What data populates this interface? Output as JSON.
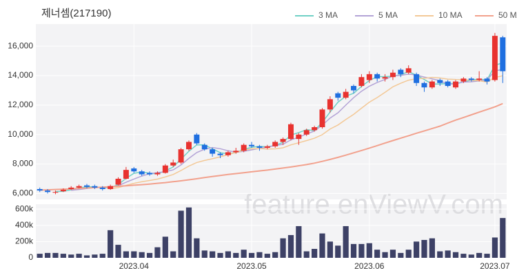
{
  "chart_data": {
    "type": "candlestick",
    "title": "제너셈(217190)",
    "watermark": "feature.enViewV.com",
    "legend": "top-right",
    "grid": true,
    "up_color": "#e8322f",
    "down_color": "#1f6fe0",
    "categories": [
      null,
      null,
      null,
      null,
      null,
      null,
      null,
      null,
      null,
      null,
      null,
      null,
      "2023.04",
      null,
      null,
      null,
      null,
      null,
      null,
      null,
      null,
      null,
      null,
      null,
      null,
      null,
      null,
      "2023.05",
      null,
      null,
      null,
      null,
      null,
      null,
      null,
      null,
      null,
      null,
      null,
      null,
      null,
      null,
      "2023.06",
      null,
      null,
      null,
      null,
      null,
      null,
      null,
      null,
      null,
      null,
      null,
      null,
      null,
      null,
      null,
      "2023.07",
      null
    ],
    "open": [
      6300,
      6200,
      6050,
      6150,
      6300,
      6400,
      6550,
      6500,
      6400,
      6300,
      6600,
      7000,
      7700,
      7500,
      7400,
      7300,
      7400,
      7900,
      8100,
      9000,
      10000,
      9300,
      9000,
      8700,
      8600,
      8800,
      8900,
      9300,
      9200,
      9100,
      9200,
      9500,
      9700,
      9700,
      10000,
      10300,
      10500,
      11700,
      12800,
      12500,
      13300,
      13300,
      13700,
      14100,
      13800,
      13900,
      14400,
      14200,
      14100,
      13500,
      13200,
      13700,
      13600,
      13200,
      13600,
      13800,
      13700,
      13800,
      13700,
      16600
    ],
    "high": [
      6400,
      6300,
      6200,
      6350,
      6500,
      6600,
      6650,
      6600,
      6500,
      6600,
      7100,
      7800,
      7800,
      7600,
      7500,
      7500,
      8000,
      8300,
      9100,
      9600,
      10100,
      9400,
      9100,
      8800,
      8900,
      9100,
      9400,
      9500,
      9300,
      9300,
      9600,
      9800,
      10800,
      10100,
      10400,
      10600,
      11800,
      12600,
      12900,
      13100,
      13400,
      14100,
      14300,
      14200,
      14100,
      14400,
      14500,
      14700,
      14200,
      13600,
      13700,
      13800,
      13700,
      13700,
      13900,
      13900,
      14300,
      13900,
      16900,
      16700
    ],
    "low": [
      6100,
      6000,
      5950,
      6100,
      6250,
      6350,
      6350,
      6300,
      6200,
      6250,
      6550,
      6950,
      7400,
      7200,
      7200,
      7200,
      7350,
      7800,
      8000,
      8900,
      9300,
      8900,
      8500,
      8400,
      8500,
      8700,
      8800,
      9100,
      8900,
      9000,
      9100,
      9300,
      9600,
      9300,
      9900,
      10200,
      10400,
      11500,
      12300,
      12400,
      12800,
      13200,
      13500,
      13600,
      13600,
      13700,
      13900,
      14100,
      13300,
      12900,
      13100,
      13300,
      13200,
      13100,
      13500,
      13600,
      13600,
      13400,
      13600,
      13500
    ],
    "close": [
      6200,
      6100,
      6100,
      6250,
      6400,
      6500,
      6450,
      6400,
      6300,
      6500,
      7000,
      7600,
      7500,
      7300,
      7300,
      7400,
      7900,
      8100,
      9000,
      9500,
      9400,
      9000,
      8700,
      8600,
      8800,
      8900,
      9300,
      9200,
      9100,
      9200,
      9500,
      9700,
      10700,
      10000,
      10300,
      10500,
      11700,
      12400,
      12500,
      12900,
      13000,
      13900,
      14100,
      13800,
      13900,
      14200,
      14100,
      14500,
      13500,
      13200,
      13600,
      13500,
      13300,
      13600,
      13800,
      13700,
      13800,
      13600,
      16700,
      14300
    ],
    "ylim": [
      5600,
      17500
    ],
    "yticks": [
      {
        "value": 6000,
        "label": "6,000"
      },
      {
        "value": 8000,
        "label": "8,000"
      },
      {
        "value": 10000,
        "label": "10,000"
      },
      {
        "value": 12000,
        "label": "12,000"
      },
      {
        "value": 14000,
        "label": "14,000"
      },
      {
        "value": 16000,
        "label": "16,000"
      }
    ],
    "series": [
      {
        "name": "3 MA",
        "color": "#6fd0c5",
        "values": [
          null,
          null,
          6133,
          6150,
          6250,
          6383,
          6450,
          6450,
          6383,
          6400,
          6600,
          7033,
          7367,
          7467,
          7367,
          7333,
          7533,
          7800,
          8333,
          8867,
          9300,
          9300,
          9033,
          8767,
          8700,
          8767,
          9000,
          9133,
          9200,
          9167,
          9267,
          9467,
          9967,
          10133,
          10333,
          10267,
          10833,
          11533,
          12200,
          12600,
          12800,
          13267,
          13667,
          13933,
          13933,
          13967,
          14067,
          14267,
          14033,
          13733,
          13433,
          13433,
          13467,
          13467,
          13567,
          13700,
          13767,
          13700,
          14700,
          14867
        ]
      },
      {
        "name": "5 MA",
        "color": "#b3a3d6",
        "values": [
          null,
          null,
          null,
          null,
          6210,
          6270,
          6340,
          6400,
          6410,
          6430,
          6530,
          6760,
          6980,
          7180,
          7340,
          7420,
          7480,
          7600,
          7940,
          8380,
          8780,
          9000,
          9120,
          9040,
          8900,
          8800,
          8860,
          8960,
          9060,
          9140,
          9260,
          9340,
          9640,
          9820,
          10040,
          10240,
          10640,
          11120,
          11480,
          12000,
          12500,
          12940,
          13280,
          13540,
          13740,
          13980,
          14020,
          14100,
          14040,
          13900,
          13780,
          13660,
          13420,
          13440,
          13560,
          13580,
          13640,
          13700,
          14320,
          14420
        ]
      },
      {
        "name": "10 MA",
        "color": "#f3c896",
        "values": [
          null,
          null,
          null,
          null,
          null,
          null,
          null,
          null,
          null,
          6320,
          6400,
          6550,
          6690,
          6795,
          6885,
          6975,
          7120,
          7290,
          7560,
          7860,
          8100,
          8240,
          8360,
          8490,
          8640,
          8790,
          8930,
          9040,
          9050,
          9020,
          9030,
          9100,
          9300,
          9440,
          9590,
          9750,
          9990,
          10380,
          10650,
          11020,
          11370,
          11790,
          12200,
          12510,
          12870,
          13240,
          13480,
          13690,
          13790,
          13820,
          13880,
          13840,
          13760,
          13740,
          13730,
          13680,
          13650,
          13560,
          13880,
          13990
        ]
      },
      {
        "name": "50 MA",
        "color": "#f2a08c",
        "values": [
          6230,
          6250,
          6270,
          6290,
          6310,
          6340,
          6370,
          6400,
          6430,
          6460,
          6490,
          6520,
          6560,
          6600,
          6640,
          6690,
          6740,
          6800,
          6860,
          6930,
          7000,
          7080,
          7150,
          7220,
          7290,
          7350,
          7410,
          7470,
          7530,
          7590,
          7660,
          7730,
          7800,
          7880,
          7960,
          8060,
          8180,
          8310,
          8450,
          8600,
          8760,
          8920,
          9080,
          9250,
          9420,
          9590,
          9760,
          9920,
          10090,
          10250,
          10410,
          10570,
          10780,
          10980,
          11160,
          11340,
          11520,
          11700,
          11880,
          12100
        ]
      }
    ],
    "volume": {
      "color": "#3d4166",
      "values": [
        50000,
        60000,
        60000,
        50000,
        40000,
        50000,
        30000,
        40000,
        50000,
        340000,
        160000,
        80000,
        80000,
        70000,
        60000,
        130000,
        260000,
        80000,
        580000,
        620000,
        240000,
        90000,
        80000,
        60000,
        80000,
        60000,
        100000,
        60000,
        70000,
        50000,
        70000,
        240000,
        280000,
        390000,
        80000,
        110000,
        300000,
        200000,
        150000,
        390000,
        170000,
        170000,
        180000,
        100000,
        70000,
        100000,
        60000,
        100000,
        200000,
        220000,
        240000,
        80000,
        90000,
        70000,
        50000,
        40000,
        60000,
        50000,
        250000,
        490000
      ],
      "ylim": [
        0,
        660000
      ],
      "yticks": [
        0,
        {
          "value": 200000,
          "label": "200k"
        },
        {
          "value": 400000,
          "label": "400k"
        },
        {
          "value": 600000,
          "label": "600k"
        }
      ]
    }
  }
}
